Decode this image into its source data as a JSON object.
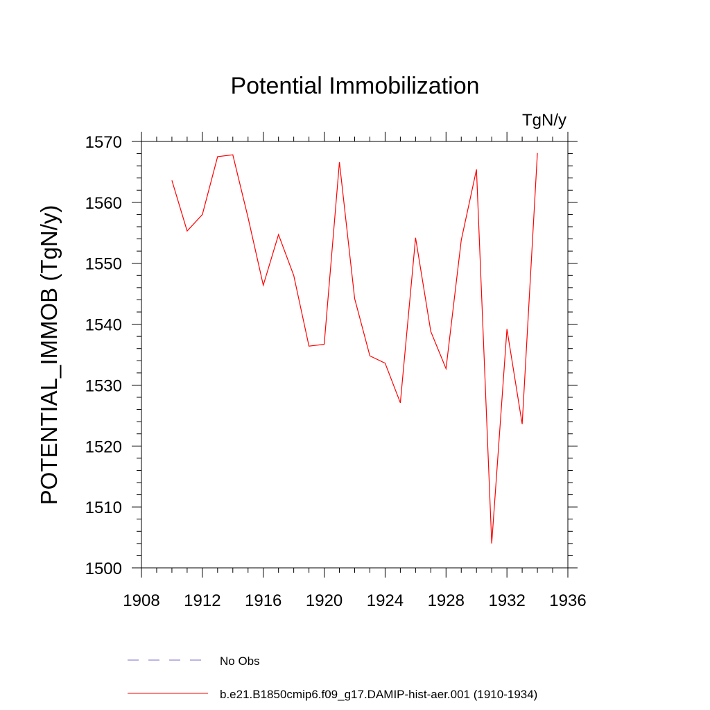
{
  "chart_data": {
    "type": "line",
    "title": "Potential Immobilization",
    "units_label": "TgN/y",
    "ylabel": "POTENTIAL_IMMOB  (TgN/y)",
    "xlabel": "",
    "xlim": [
      1908,
      1936
    ],
    "ylim": [
      1500,
      1570
    ],
    "x_ticks": [
      1908,
      1912,
      1916,
      1920,
      1924,
      1928,
      1932,
      1936
    ],
    "y_ticks": [
      1500,
      1510,
      1520,
      1530,
      1540,
      1550,
      1560,
      1570
    ],
    "grid": false,
    "x": [
      1910,
      1911,
      1912,
      1913,
      1914,
      1915,
      1916,
      1917,
      1918,
      1919,
      1920,
      1921,
      1922,
      1923,
      1924,
      1925,
      1926,
      1927,
      1928,
      1929,
      1930,
      1931,
      1932,
      1933,
      1934
    ],
    "series": [
      {
        "name": "b.e21.B1850cmip6.f09_g17.DAMIP-hist-aer.001 (1910-1934)",
        "color": "#ff0000",
        "values": [
          1563.6,
          1555.3,
          1558.0,
          1567.5,
          1567.8,
          1557.5,
          1546.4,
          1554.7,
          1548.0,
          1536.4,
          1536.7,
          1566.6,
          1544.2,
          1534.8,
          1533.6,
          1527.1,
          1554.2,
          1538.8,
          1532.7,
          1553.8,
          1565.4,
          1504.0,
          1539.2,
          1523.6,
          1568.1
        ]
      }
    ],
    "legend": {
      "position": "bottom",
      "entries": [
        {
          "label": "No Obs",
          "style": "dashed",
          "color": "#7b68c8"
        },
        {
          "label": "b.e21.B1850cmip6.f09_g17.DAMIP-hist-aer.001 (1910-1934)",
          "style": "solid",
          "color": "#ff0000"
        }
      ]
    }
  }
}
